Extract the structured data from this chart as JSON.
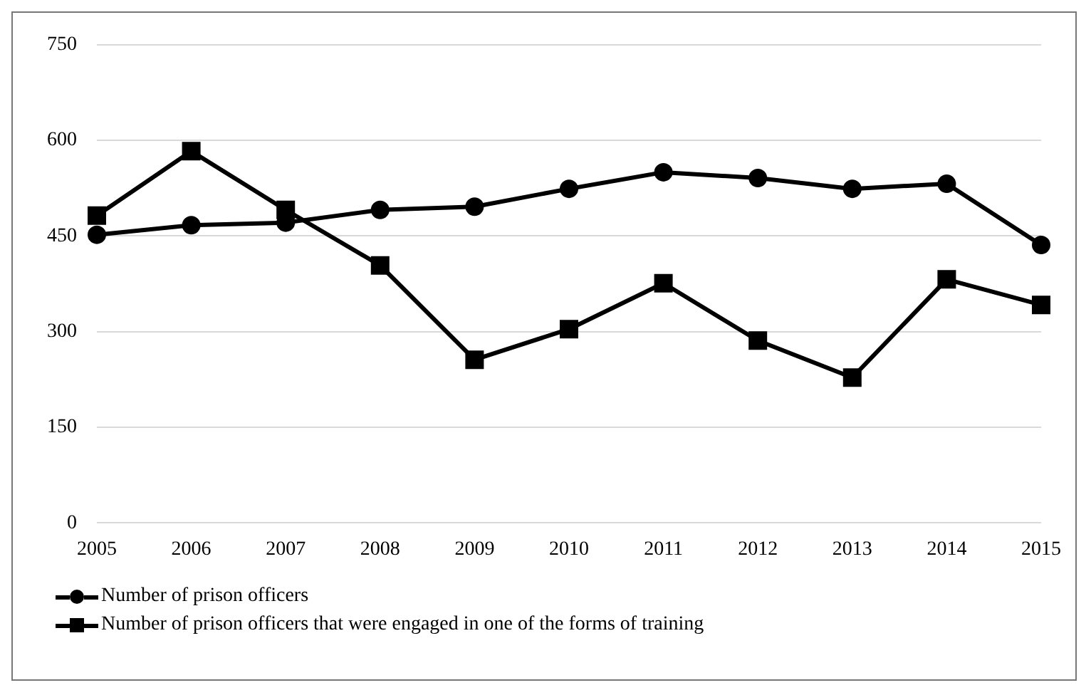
{
  "chart_data": {
    "type": "line",
    "categories": [
      "2005",
      "2006",
      "2007",
      "2008",
      "2009",
      "2010",
      "2011",
      "2012",
      "2013",
      "2014",
      "2015"
    ],
    "series": [
      {
        "name": "Number of prison officers",
        "color": "#000000",
        "marker": "circle",
        "values": [
          452,
          467,
          471,
          491,
          496,
          524,
          550,
          541,
          524,
          532,
          436
        ]
      },
      {
        "name": "Number of prison officers that were engaged in one of the forms of training",
        "color": "#000000",
        "marker": "square",
        "values": [
          482,
          583,
          491,
          404,
          256,
          304,
          376,
          286,
          228,
          382,
          342
        ]
      }
    ],
    "ylim": [
      0,
      750
    ],
    "yticks": [
      0,
      150,
      300,
      450,
      600,
      750
    ],
    "grid": "y",
    "legend": "bottom",
    "line_style": "solid"
  }
}
